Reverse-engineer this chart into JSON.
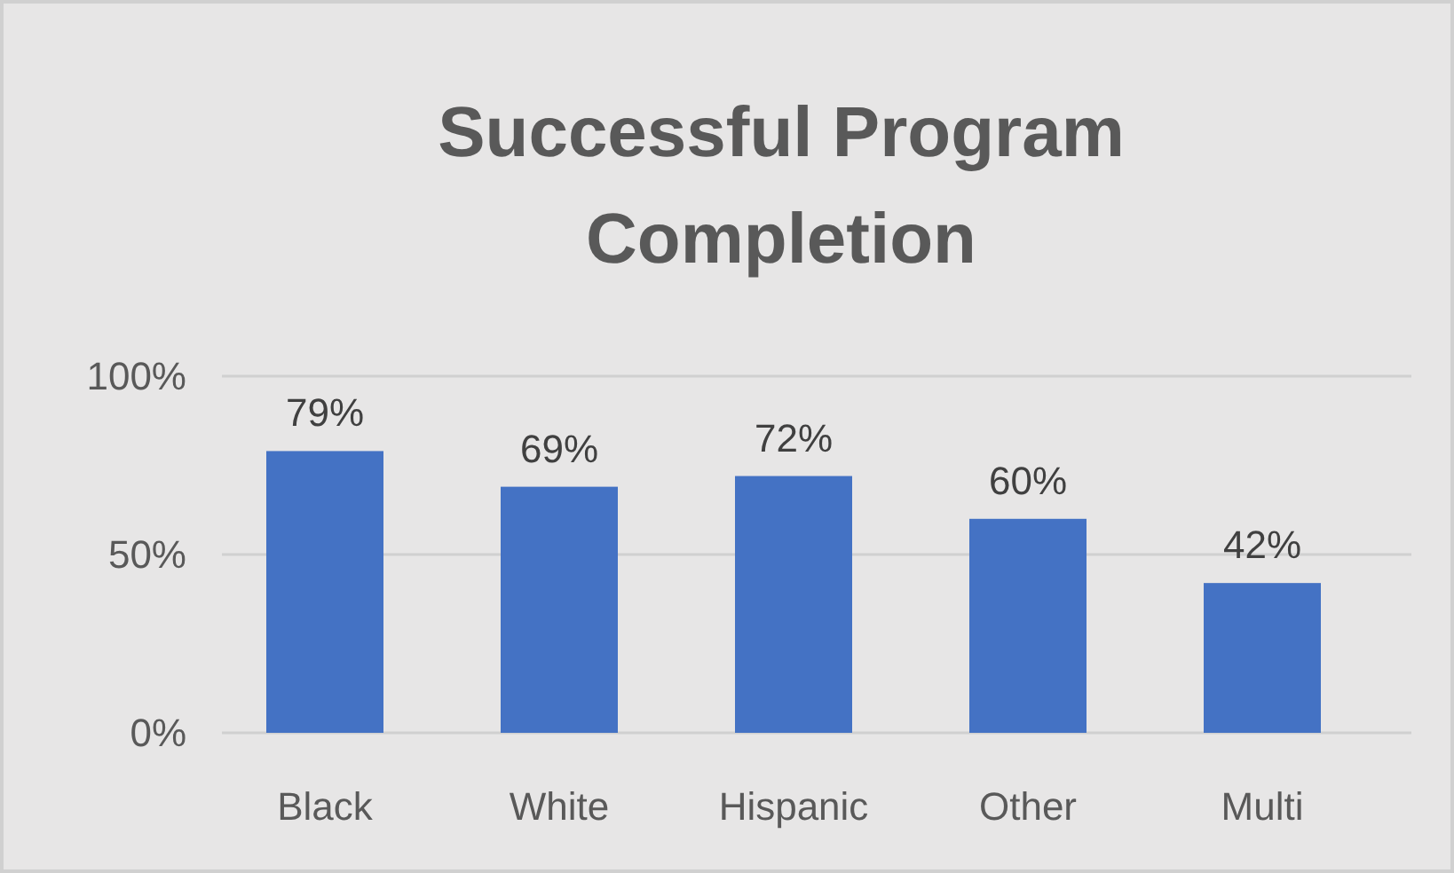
{
  "chart_data": {
    "type": "bar",
    "title": "Successful Program Completion",
    "categories": [
      "Black",
      "White",
      "Hispanic",
      "Other",
      "Multi"
    ],
    "values": [
      79,
      69,
      72,
      60,
      42
    ],
    "value_labels": [
      "79%",
      "69%",
      "72%",
      "60%",
      "42%"
    ],
    "color": "#4472c4",
    "ylim": [
      0,
      100
    ],
    "yticks": [
      {
        "value": 0,
        "label": "0%"
      },
      {
        "value": 50,
        "label": "50%"
      },
      {
        "value": 100,
        "label": "100%"
      }
    ],
    "grid": "y"
  }
}
